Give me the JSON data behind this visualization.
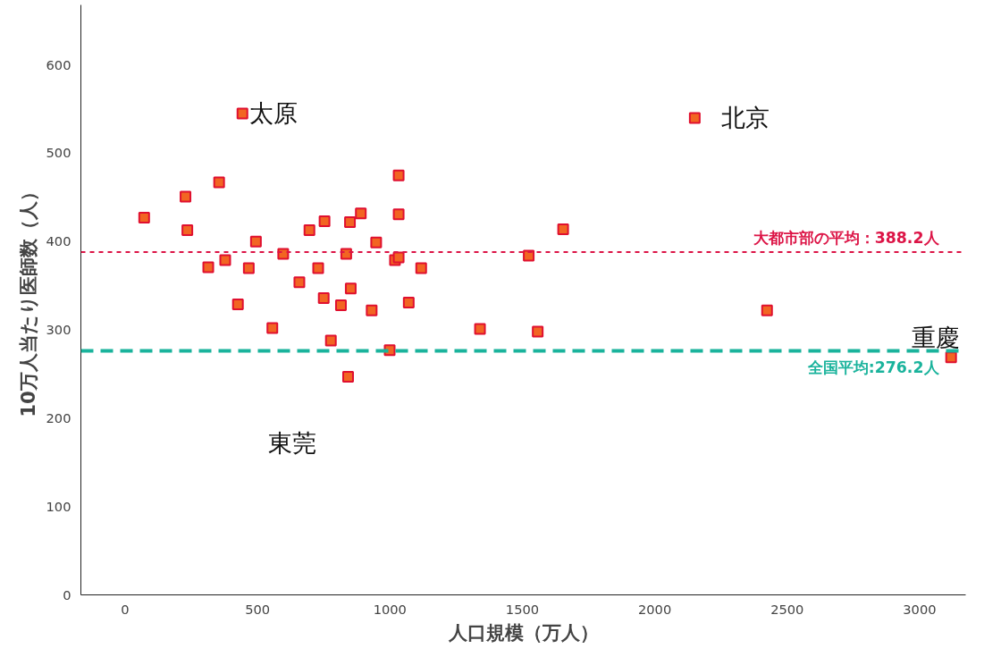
{
  "chart_data": {
    "type": "scatter",
    "xlabel": "人口規模（万人）",
    "ylabel": "10万人当たり医師数（人）",
    "xlim": [
      -167,
      3174
    ],
    "ylim": [
      0,
      668
    ],
    "xticks": [
      0,
      500,
      1000,
      1500,
      2000,
      2500,
      3000
    ],
    "yticks": [
      0,
      100,
      200,
      300,
      400,
      500,
      600
    ],
    "grid": false,
    "marker": "square",
    "series": [
      {
        "color": "#f26522",
        "x": [
          72,
          228,
          235,
          355,
          314,
          378,
          426,
          467,
          494,
          556,
          597,
          658,
          696,
          729,
          753,
          750,
          777,
          815,
          835,
          849,
          852,
          842,
          890,
          931,
          948,
          999,
          1019,
          1033,
          1033,
          1033,
          1071,
          1118,
          1340,
          1524,
          1558,
          1654,
          2151,
          2424,
          3119,
          443
        ],
        "values": [
          427,
          451,
          413,
          467,
          371,
          379,
          329,
          370,
          400,
          302,
          386,
          354,
          413,
          370,
          423,
          336,
          288,
          328,
          386,
          422,
          347,
          247,
          432,
          322,
          399,
          277,
          379,
          382,
          431,
          475,
          331,
          370,
          301,
          384,
          298,
          414,
          540,
          322,
          269,
          545
        ]
      }
    ],
    "ref_lines": [
      {
        "axis": "y",
        "value": 388.2,
        "label": "大都市部の平均：388.2人",
        "color": "#dc1446",
        "line_style": "dotted"
      },
      {
        "axis": "y",
        "value": 276.2,
        "label": "全国平均:276.2人",
        "color": "#1ab39c",
        "line_style": "dashed"
      }
    ],
    "annotations": [
      {
        "text": "太原",
        "x": 443,
        "y": 545
      },
      {
        "text": "北京",
        "x": 2151,
        "y": 540
      },
      {
        "text": "東莞",
        "x": 842,
        "y": 247
      },
      {
        "text": "重慶",
        "x": 3119,
        "y": 269
      }
    ]
  }
}
